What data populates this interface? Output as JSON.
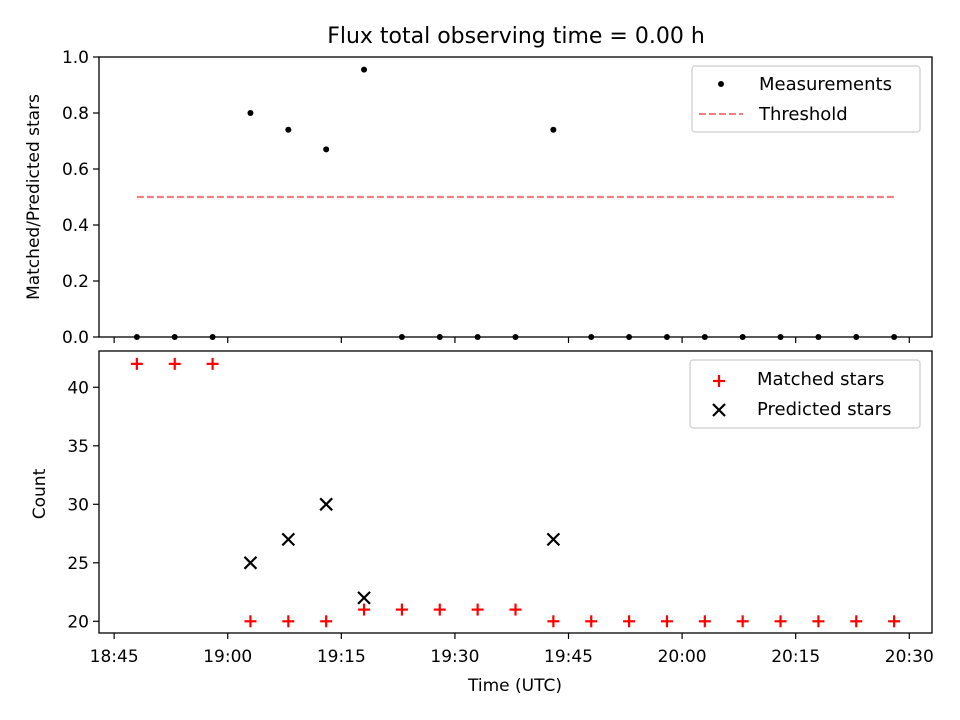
{
  "title": "Flux total observing time = 0.00 h",
  "chart_data": [
    {
      "type": "scatter",
      "ylabel": "Matched/Predicted stars",
      "xlabel": "",
      "ylim": [
        0,
        1.0
      ],
      "yticks": [
        0.0,
        0.2,
        0.4,
        0.6,
        0.8,
        1.0
      ],
      "ytick_labels": [
        "0.0",
        "0.2",
        "0.4",
        "0.6",
        "0.8",
        "1.0"
      ],
      "legend_position": "top-right",
      "series": [
        {
          "name": "Measurements",
          "style": "dot",
          "color": "#000000",
          "x": [
            "18:48",
            "18:53",
            "18:58",
            "19:03",
            "19:08",
            "19:13",
            "19:18",
            "19:23",
            "19:28",
            "19:33",
            "19:38",
            "19:43",
            "19:48",
            "19:53",
            "19:58",
            "20:03",
            "20:08",
            "20:13",
            "20:18",
            "20:23",
            "20:28"
          ],
          "y": [
            0,
            0,
            0,
            0.8,
            0.74,
            0.67,
            0.955,
            0,
            0,
            0,
            0,
            0.74,
            0,
            0,
            0,
            0,
            0,
            0,
            0,
            0,
            0
          ]
        },
        {
          "name": "Threshold",
          "style": "dashed-line",
          "color": "#f08080",
          "x": [
            "18:48",
            "20:28"
          ],
          "y": [
            0.5,
            0.5
          ]
        }
      ]
    },
    {
      "type": "scatter",
      "ylabel": "Count",
      "xlabel": "Time (UTC)",
      "ylim": [
        19,
        43.1
      ],
      "yticks": [
        20,
        25,
        30,
        35,
        40
      ],
      "ytick_labels": [
        "20",
        "25",
        "30",
        "35",
        "40"
      ],
      "legend_position": "top-right",
      "series": [
        {
          "name": "Matched stars",
          "style": "plus",
          "color": "#ff0000",
          "x": [
            "18:48",
            "18:53",
            "18:58",
            "19:03",
            "19:08",
            "19:13",
            "19:18",
            "19:23",
            "19:28",
            "19:33",
            "19:38",
            "19:43",
            "19:48",
            "19:53",
            "19:58",
            "20:03",
            "20:08",
            "20:13",
            "20:18",
            "20:23",
            "20:28"
          ],
          "y": [
            42,
            42,
            42,
            20,
            20,
            20,
            21,
            21,
            21,
            21,
            21,
            20,
            20,
            20,
            20,
            20,
            20,
            20,
            20,
            20,
            20
          ]
        },
        {
          "name": "Predicted stars",
          "style": "x",
          "color": "#000000",
          "x": [
            "19:03",
            "19:08",
            "19:13",
            "19:18",
            "19:43"
          ],
          "y": [
            25,
            27,
            30,
            22,
            27
          ]
        }
      ]
    }
  ],
  "x_axis": {
    "range": [
      "18:43",
      "20:33"
    ],
    "ticks": [
      "18:45",
      "19:00",
      "19:15",
      "19:30",
      "19:45",
      "20:00",
      "20:15",
      "20:30"
    ],
    "tick_labels": [
      "18:45",
      "19:00",
      "19:15",
      "19:30",
      "19:45",
      "20:00",
      "20:15",
      "20:30"
    ]
  }
}
